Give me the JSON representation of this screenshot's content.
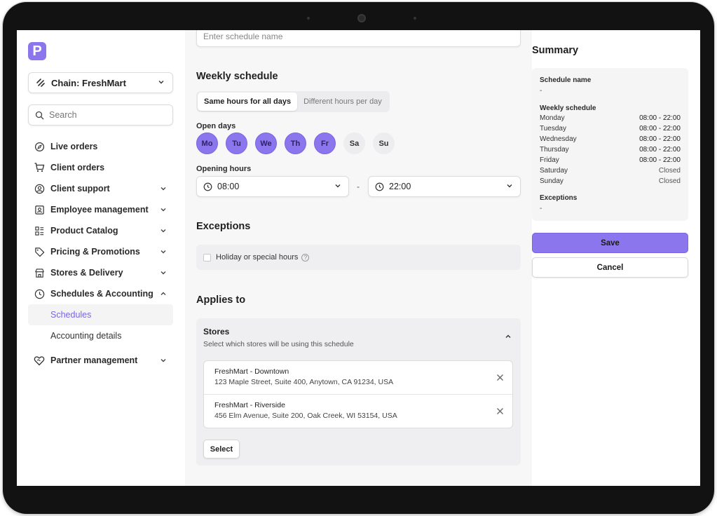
{
  "app": {
    "logo_letter": "P",
    "logo_color": "#8b76ee"
  },
  "sidebar": {
    "chain_label": "Chain: FreshMart",
    "search_placeholder": "Search",
    "items": [
      {
        "label": "Live orders",
        "icon": "compass-icon",
        "has_chevron": false
      },
      {
        "label": "Client orders",
        "icon": "cart-icon",
        "has_chevron": false
      },
      {
        "label": "Client support",
        "icon": "user-circle-icon",
        "has_chevron": true
      },
      {
        "label": "Employee management",
        "icon": "id-badge-icon",
        "has_chevron": true
      },
      {
        "label": "Product Catalog",
        "icon": "catalog-icon",
        "has_chevron": true
      },
      {
        "label": "Pricing & Promotions",
        "icon": "tag-icon",
        "has_chevron": true
      },
      {
        "label": "Stores & Delivery",
        "icon": "store-icon",
        "has_chevron": true
      },
      {
        "label": "Schedules & Accounting",
        "icon": "clock-icon",
        "has_chevron": true,
        "expanded": true
      }
    ],
    "subitems": [
      {
        "label": "Schedules",
        "active": true
      },
      {
        "label": "Accounting details",
        "active": false
      }
    ],
    "partner": {
      "label": "Partner management",
      "icon": "heart-handshake-icon"
    }
  },
  "form": {
    "name_placeholder": "Enter schedule name",
    "weekly_title": "Weekly schedule",
    "mode_options": [
      "Same hours for all days",
      "Different hours per day"
    ],
    "mode_selected": "Same hours for all days",
    "open_days_label": "Open days",
    "days": [
      {
        "label": "Mo",
        "on": true
      },
      {
        "label": "Tu",
        "on": true
      },
      {
        "label": "We",
        "on": true
      },
      {
        "label": "Th",
        "on": true
      },
      {
        "label": "Fr",
        "on": true
      },
      {
        "label": "Sa",
        "on": false
      },
      {
        "label": "Su",
        "on": false
      }
    ],
    "opening_hours_label": "Opening hours",
    "open_time": "08:00",
    "close_time": "22:00",
    "separator": "-",
    "exceptions_title": "Exceptions",
    "holiday_label": "Holiday or special hours",
    "applies_title": "Applies to",
    "stores_title": "Stores",
    "stores_subtitle": "Select which stores will be using this schedule",
    "stores": [
      {
        "name": "FreshMart - Downtown",
        "address": "123 Maple Street, Suite 400, Anytown, CA 91234, USA"
      },
      {
        "name": "FreshMart - Riverside",
        "address": "456 Elm Avenue, Suite 200, Oak Creek, WI 53154, USA"
      }
    ],
    "select_label": "Select"
  },
  "summary": {
    "title": "Summary",
    "schedule_name_label": "Schedule name",
    "schedule_name_value": "-",
    "weekly_label": "Weekly schedule",
    "rows": [
      {
        "day": "Monday",
        "hours": "08:00 - 22:00"
      },
      {
        "day": "Tuesday",
        "hours": "08:00 - 22:00"
      },
      {
        "day": "Wednesday",
        "hours": "08:00 - 22:00"
      },
      {
        "day": "Thursday",
        "hours": "08:00 - 22:00"
      },
      {
        "day": "Friday",
        "hours": "08:00 - 22:00"
      },
      {
        "day": "Saturday",
        "hours": "Closed"
      },
      {
        "day": "Sunday",
        "hours": "Closed"
      }
    ],
    "exceptions_label": "Exceptions",
    "exceptions_value": "-",
    "save_label": "Save",
    "cancel_label": "Cancel"
  }
}
